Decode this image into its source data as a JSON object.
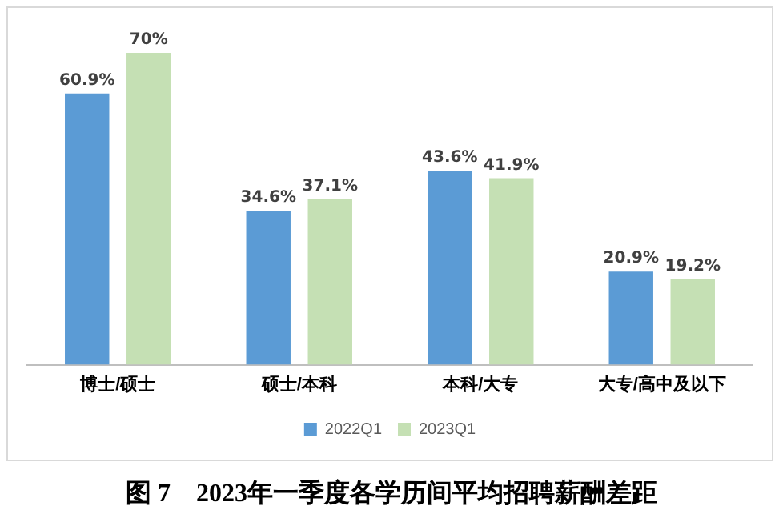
{
  "chart_data": {
    "type": "bar",
    "title": "图 7　2023年一季度各学历间平均招聘薪酬差距",
    "categories": [
      "博士/硕士",
      "硕士/本科",
      "本科/大专",
      "大专/高中及以下"
    ],
    "series": [
      {
        "name": "2022Q1",
        "color": "#5b9bd5",
        "values": [
          60.9,
          34.6,
          43.6,
          20.9
        ],
        "value_labels": [
          "60.9%",
          "34.6%",
          "43.6%",
          "20.9%"
        ]
      },
      {
        "name": "2023Q1",
        "color": "#c5e0b4",
        "values": [
          70,
          37.1,
          41.9,
          19.2
        ],
        "value_labels": [
          "70%",
          "37.1%",
          "41.9%",
          "19.2%"
        ]
      }
    ],
    "legend": "bottom"
  }
}
